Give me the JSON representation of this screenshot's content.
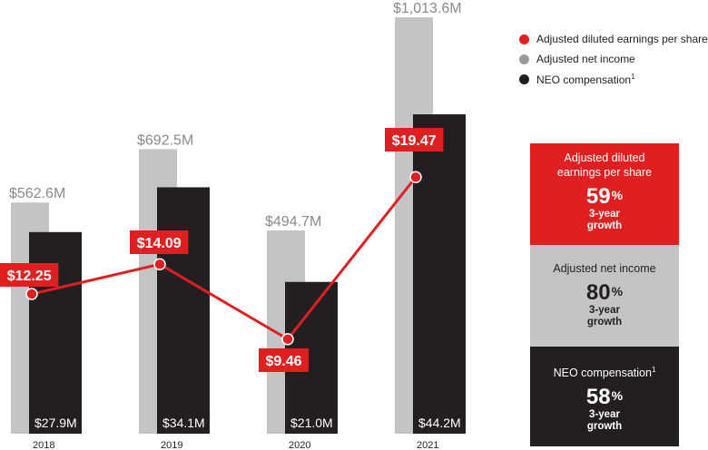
{
  "chart_data": {
    "type": "bar",
    "categories": [
      "2018",
      "2019",
      "2020",
      "2021"
    ],
    "series": [
      {
        "name": "Adjusted net income",
        "type": "bar",
        "color": "#c4c4c6",
        "values": [
          562.6,
          692.5,
          494.7,
          1013.6
        ],
        "labels": [
          "$562.6M",
          "$692.5M",
          "$494.7M",
          "$1,013.6M"
        ]
      },
      {
        "name": "NEO compensation",
        "type": "bar",
        "color": "#231f20",
        "values": [
          27.9,
          34.1,
          21.0,
          44.2
        ],
        "labels": [
          "$27.9M",
          "$34.1M",
          "$21.0M",
          "$44.2M"
        ]
      },
      {
        "name": "Adjusted diluted earnings per share",
        "type": "line",
        "color": "#e02020",
        "values": [
          12.25,
          14.09,
          9.46,
          19.47
        ],
        "labels": [
          "$12.25",
          "$14.09",
          "$9.46",
          "$19.47"
        ]
      }
    ],
    "legend": {
      "placement": "top-right",
      "items": [
        {
          "label": "Adjusted diluted earnings per share",
          "color": "#e02020",
          "sup": ""
        },
        {
          "label": "Adjusted net income",
          "color": "#9a9a9c",
          "sup": ""
        },
        {
          "label": "NEO compensation",
          "color": "#231f20",
          "sup": "1"
        }
      ]
    },
    "grid": false
  },
  "growth_panels": [
    {
      "title": "Adjusted diluted earnings per share",
      "title_sup": "",
      "percent": "59",
      "percent_sign": "%",
      "subtitle_1": "3-year",
      "subtitle_2": "growth",
      "bg": "#e02020",
      "fg": "#ffffff"
    },
    {
      "title": "Adjusted net income",
      "title_sup": "",
      "percent": "80",
      "percent_sign": "%",
      "subtitle_1": "3-year",
      "subtitle_2": "growth",
      "bg": "#c4c4c6",
      "fg": "#231f20"
    },
    {
      "title": "NEO compensation",
      "title_sup": "1",
      "percent": "58",
      "percent_sign": "%",
      "subtitle_1": "3-year",
      "subtitle_2": "growth",
      "bg": "#231f20",
      "fg": "#ffffff"
    }
  ]
}
